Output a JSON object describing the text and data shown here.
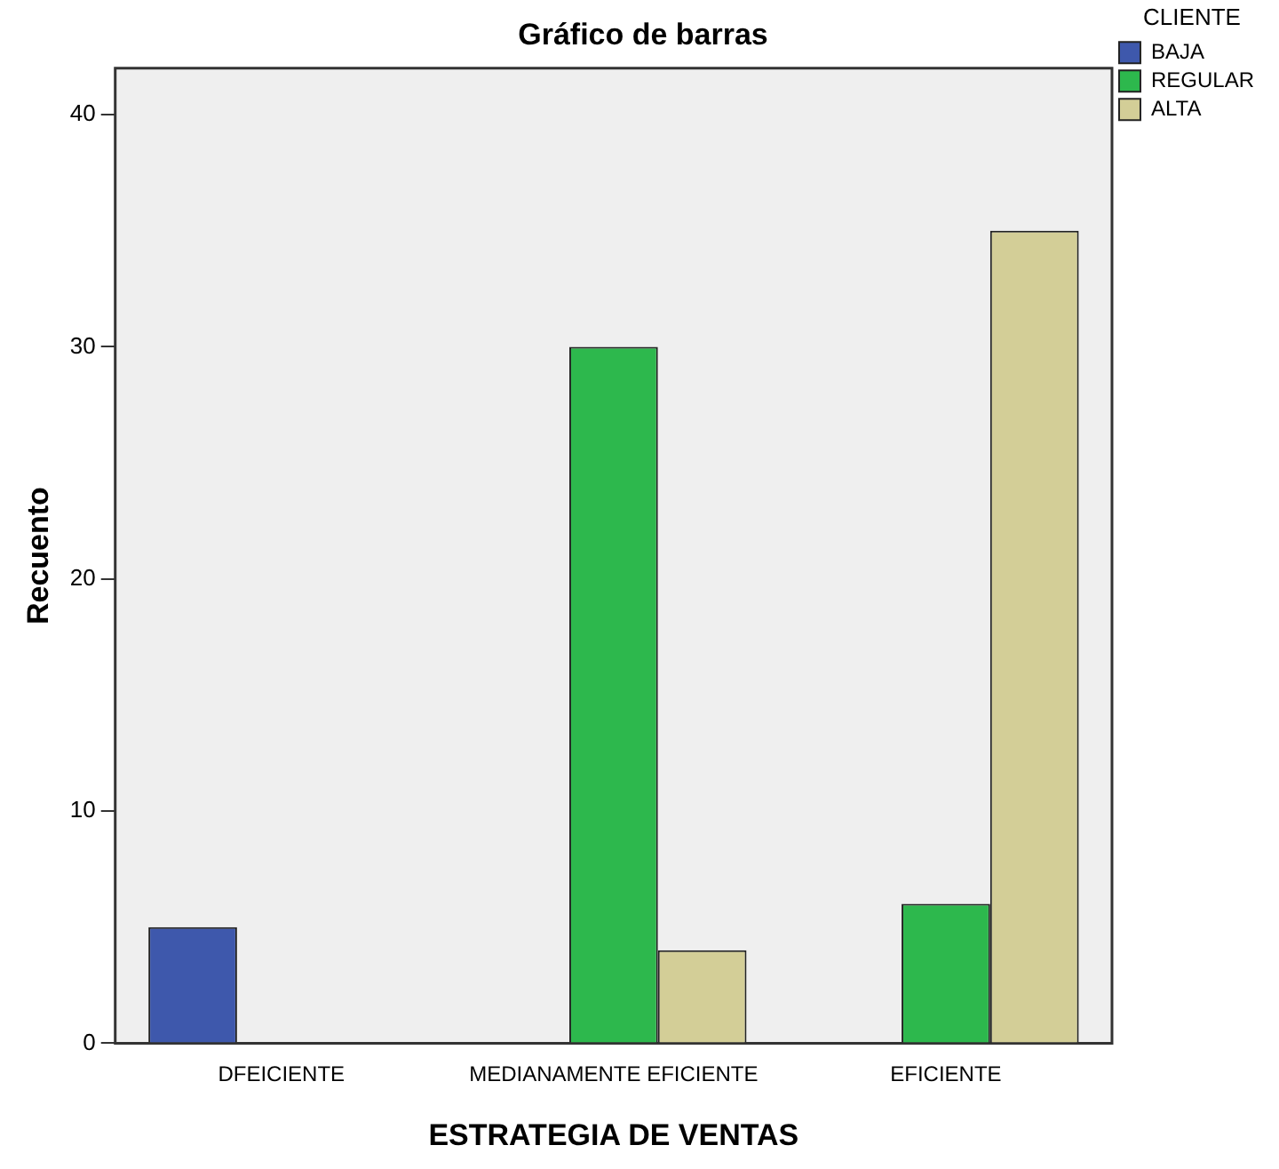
{
  "chart_data": {
    "type": "bar",
    "title": "Gráfico de barras",
    "xlabel": "ESTRATEGIA DE VENTAS",
    "ylabel": "Recuento",
    "legend_title": "CLIENTE",
    "categories": [
      "DFEICIENTE",
      "MEDIANAMENTE EFICIENTE",
      "EFICIENTE"
    ],
    "series": [
      {
        "name": "BAJA",
        "color": "#3e58ac",
        "values": [
          5,
          null,
          null
        ]
      },
      {
        "name": "REGULAR",
        "color": "#2db84d",
        "values": [
          null,
          30,
          6
        ]
      },
      {
        "name": "ALTA",
        "color": "#d3ce97",
        "values": [
          null,
          4,
          35
        ]
      }
    ],
    "ylim": [
      0,
      42
    ],
    "yticks": [
      0,
      10,
      20,
      30,
      40
    ],
    "grid": false,
    "legend": "top right"
  }
}
